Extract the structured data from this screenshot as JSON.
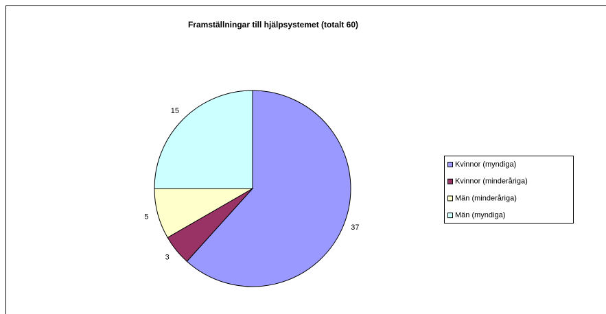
{
  "chart_data": {
    "type": "pie",
    "title": "Framställningar till hjälpsystemet (totalt 60)",
    "categories": [
      "Kvinnor (myndiga)",
      "Kvinnor (minderåriga)",
      "Män (minderåriga)",
      "Män (myndiga)"
    ],
    "values": [
      37,
      3,
      5,
      15
    ],
    "colors": [
      "#9999ff",
      "#993366",
      "#ffffcc",
      "#ccffff"
    ],
    "legend": "right"
  }
}
